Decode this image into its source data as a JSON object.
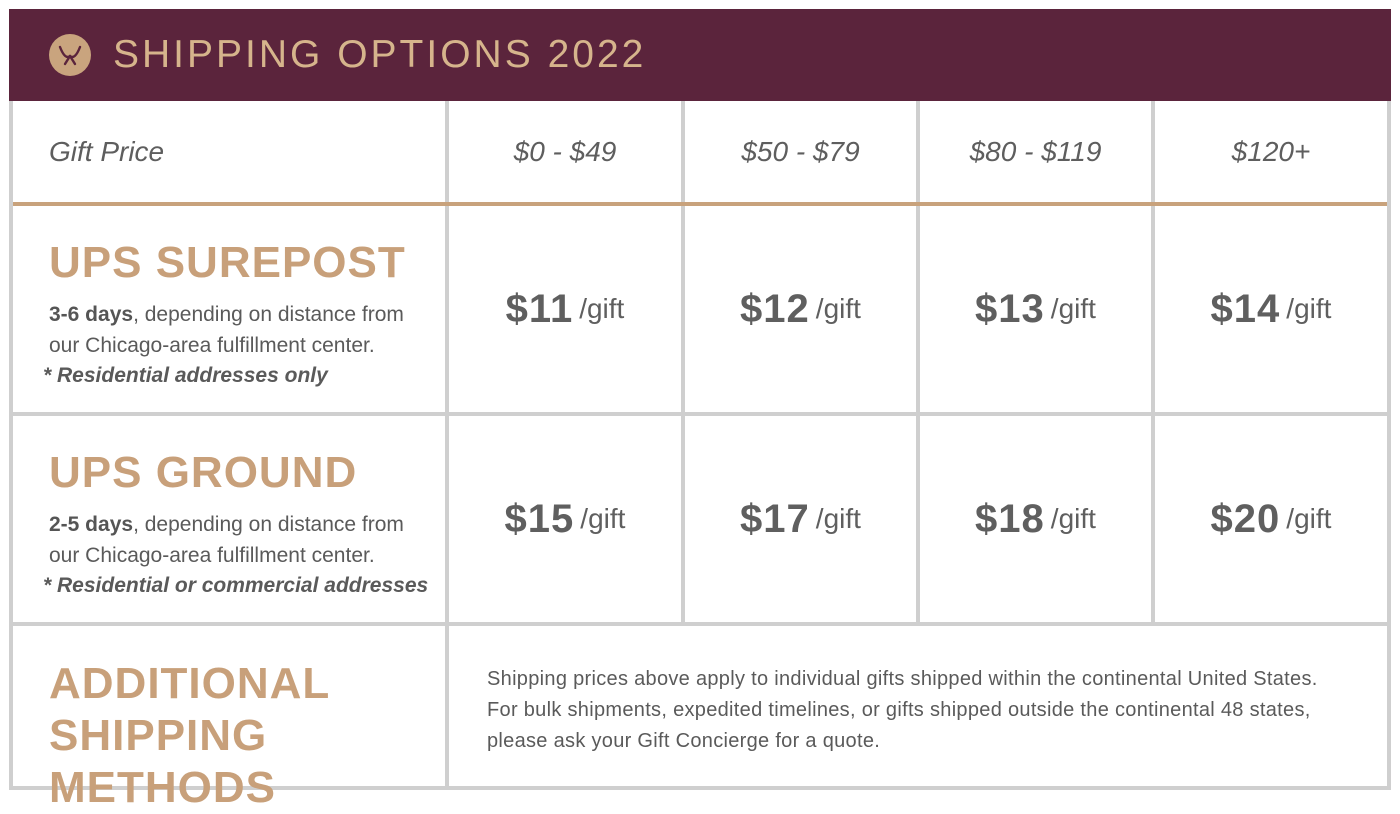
{
  "header": {
    "title": "SHIPPING OPTIONS 2022",
    "logo_icon": "bow-icon"
  },
  "table": {
    "price_label": "Gift Price",
    "price_ranges": [
      "$0 - $49",
      "$50 - $79",
      "$80 - $119",
      "$120+"
    ],
    "rows": [
      {
        "title": "UPS SUREPOST",
        "days": "3-6 days",
        "desc_rest": ", depending on distance from",
        "desc_line2": "our Chicago-area fulfillment center.",
        "note": "* Residential addresses only",
        "prices": [
          "$11",
          "$12",
          "$13",
          "$14"
        ],
        "unit": "/gift"
      },
      {
        "title": "UPS GROUND",
        "days": "2-5 days",
        "desc_rest": ", depending on distance from",
        "desc_line2": "our Chicago-area fulfillment center.",
        "note": "* Residential or commercial addresses",
        "prices": [
          "$15",
          "$17",
          "$18",
          "$20"
        ],
        "unit": "/gift"
      }
    ],
    "additional": {
      "title_line1": "ADDITIONAL",
      "title_line2": "SHIPPING METHODS",
      "info_line1": "Shipping prices above apply to individual gifts shipped within the continental United States.",
      "info_line2": "For bulk shipments, expedited timelines, or gifts shipped outside the continental 48 states,",
      "info_line3": "please ask your Gift Concierge for a quote."
    }
  },
  "colors": {
    "header_bg": "#5b243c",
    "accent_gold": "#c8a27c",
    "text_gray": "#5b5b5b",
    "grid_gray": "#cfcfcf"
  }
}
